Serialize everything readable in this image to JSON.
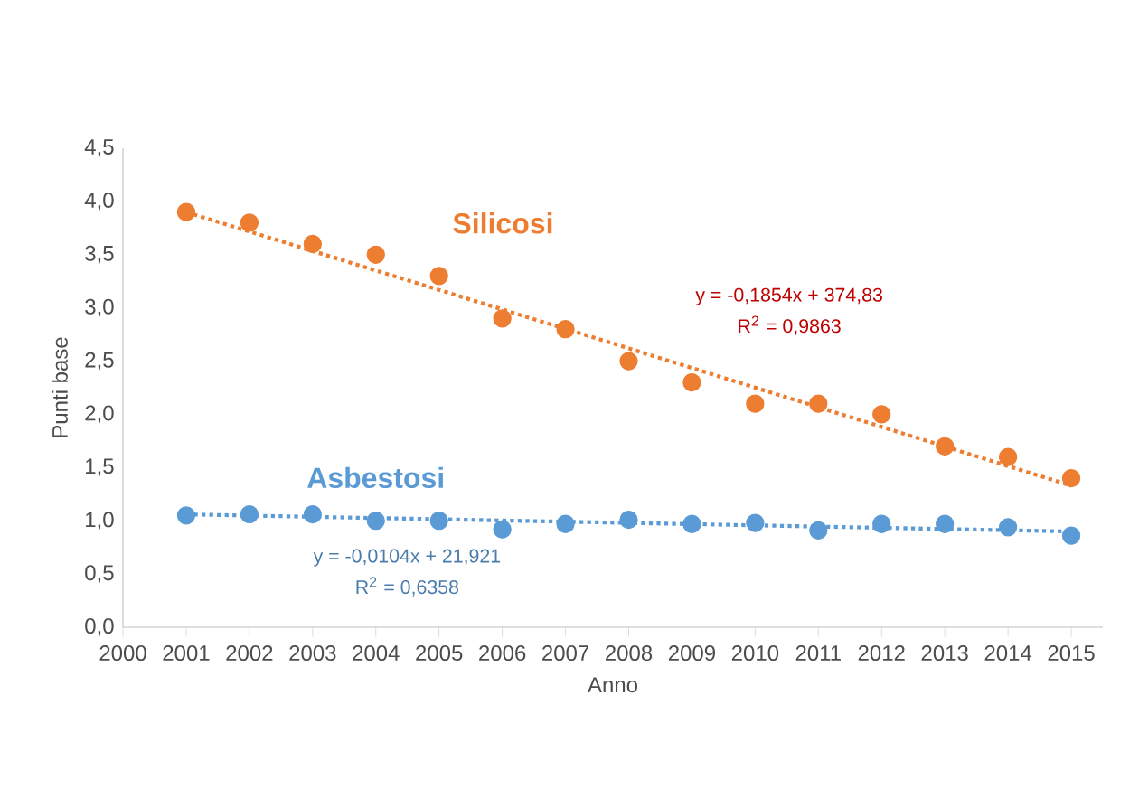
{
  "chart_data": {
    "type": "scatter",
    "xlabel": "Anno",
    "ylabel": "Punti base",
    "x": [
      2001,
      2002,
      2003,
      2004,
      2005,
      2006,
      2007,
      2008,
      2009,
      2010,
      2011,
      2012,
      2013,
      2014,
      2015
    ],
    "series": [
      {
        "name": "Silicosi",
        "color": "#ed7d31",
        "values": [
          3.9,
          3.8,
          3.6,
          3.5,
          3.3,
          2.9,
          2.8,
          2.5,
          2.3,
          2.1,
          2.1,
          2.0,
          1.7,
          1.6,
          1.4
        ]
      },
      {
        "name": "Asbestosi",
        "color": "#5b9bd5",
        "values": [
          1.05,
          1.06,
          1.06,
          1.0,
          1.0,
          0.92,
          0.97,
          1.01,
          0.97,
          0.98,
          0.91,
          0.97,
          0.97,
          0.94,
          0.86
        ]
      },
      {
        "type": "line",
        "line_style": "dotted",
        "marker": "none",
        "color": "#ed7d31",
        "x": [
          2001,
          2008,
          2015
        ],
        "values": [
          3.9,
          2.62,
          1.33
        ]
      },
      {
        "type": "line",
        "line_style": "dotted",
        "marker": "none",
        "color": "#5b9bd5",
        "x": [
          2001,
          2008,
          2015
        ],
        "values": [
          1.06,
          0.98,
          0.9
        ]
      }
    ],
    "marker": "circle",
    "xlim": [
      2000,
      2015.5
    ],
    "xticks": [
      2000,
      2001,
      2002,
      2003,
      2004,
      2005,
      2006,
      2007,
      2008,
      2009,
      2010,
      2011,
      2012,
      2013,
      2014,
      2015
    ],
    "ylim": [
      0,
      4.5
    ],
    "yticks": [
      {
        "value": 0,
        "label": "0,0"
      },
      {
        "value": 0.5,
        "label": "0,5"
      },
      {
        "value": 1,
        "label": "1,0"
      },
      {
        "value": 1.5,
        "label": "1,5"
      },
      {
        "value": 2,
        "label": "2,0"
      },
      {
        "value": 2.5,
        "label": "2,5"
      },
      {
        "value": 3,
        "label": "3,0"
      },
      {
        "value": 3.5,
        "label": "3,5"
      },
      {
        "value": 4,
        "label": "4,0"
      },
      {
        "value": 4.5,
        "label": "4,5"
      }
    ],
    "annotations": [
      "y = -0,1854x + 374,83",
      "R$^{2}$ = 0,9863",
      "y = -0,0104x + 21,921",
      "R$^{2}$ = 0,6358"
    ]
  }
}
